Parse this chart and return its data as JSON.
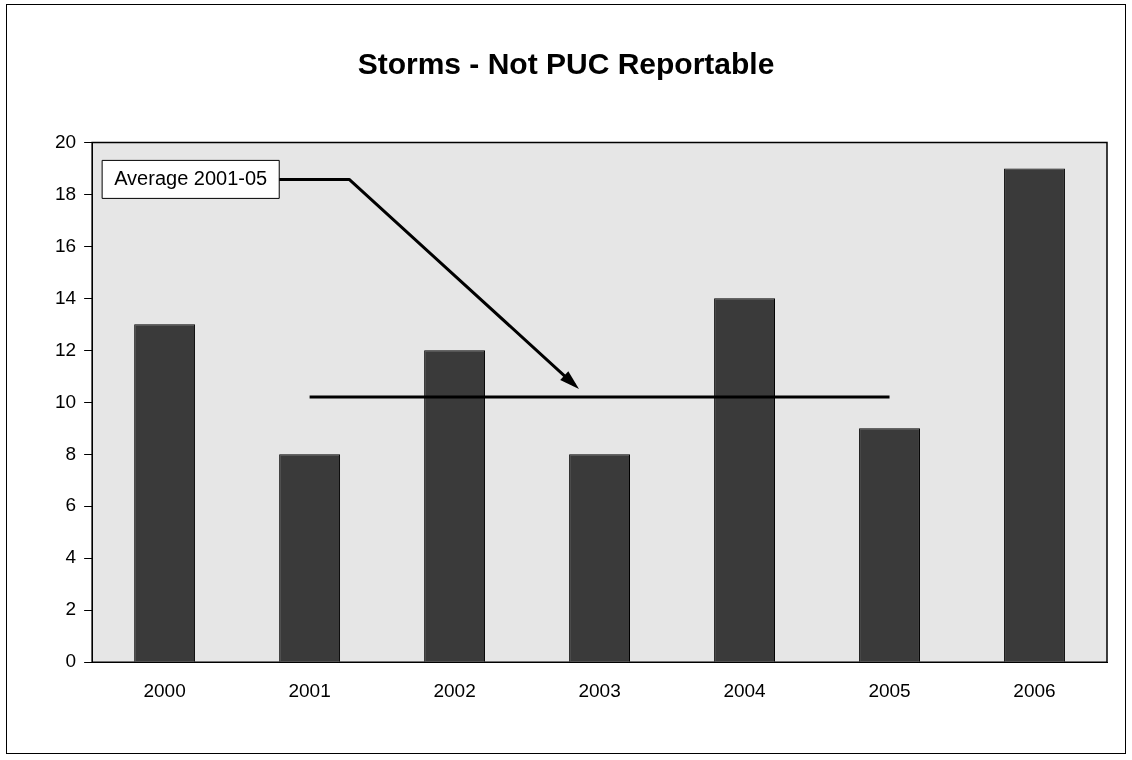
{
  "chart_data": {
    "type": "bar",
    "title": "Storms - Not PUC Reportable",
    "categories": [
      "2000",
      "2001",
      "2002",
      "2003",
      "2004",
      "2005",
      "2006"
    ],
    "series": [
      {
        "values": [
          13,
          8,
          12,
          8,
          14,
          9,
          19
        ],
        "color": "#3a3a3a"
      },
      {
        "type": "line",
        "name": "Average 2001-05",
        "values": [
          null,
          10.2,
          10.2,
          10.2,
          10.2,
          10.2,
          null
        ],
        "color": "#000000"
      }
    ],
    "ylim": [
      0,
      20
    ],
    "yticks": [
      0,
      2,
      4,
      6,
      8,
      10,
      12,
      14,
      16,
      18,
      20
    ],
    "grid": false,
    "legend": false,
    "marker": "none",
    "line_style": "solid"
  }
}
